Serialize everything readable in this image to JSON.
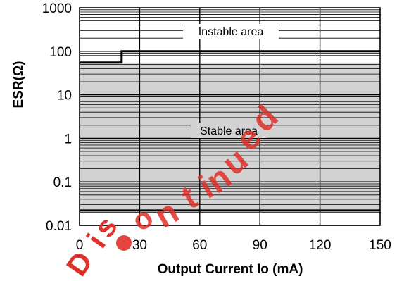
{
  "chart_data": {
    "type": "area",
    "title": "",
    "xlabel": "Output Current Io (mA)",
    "ylabel": "ESR(Ω)",
    "x_scale": "linear",
    "y_scale": "log",
    "xlim": [
      0,
      150
    ],
    "ylim": [
      0.01,
      1000
    ],
    "x_ticks": [
      0,
      30,
      60,
      90,
      120,
      150
    ],
    "x_tick_labels": [
      "0",
      "30",
      "60",
      "90",
      "120",
      "150"
    ],
    "y_ticks": [
      0.01,
      0.1,
      1,
      10,
      100,
      1000
    ],
    "y_tick_labels": [
      "0.01",
      "0.1",
      "1",
      "10",
      "100",
      "1000"
    ],
    "grid": {
      "vertical": true,
      "horizontal_minor_log": true
    },
    "stable_region": {
      "label": "Stable area",
      "lower_esr": 0.022,
      "upper_boundary": {
        "x": [
          0,
          21,
          21,
          150
        ],
        "y": [
          55,
          55,
          100,
          100
        ]
      }
    },
    "instable_region": {
      "label": "Instable area"
    },
    "colors": {
      "stable_fill": "#d2d2d2",
      "instable_fill": "#ffffff",
      "grid": "#000000",
      "boundary": "#000000",
      "watermark": "#e0302a"
    }
  },
  "watermark": {
    "text": "Discontinued"
  }
}
